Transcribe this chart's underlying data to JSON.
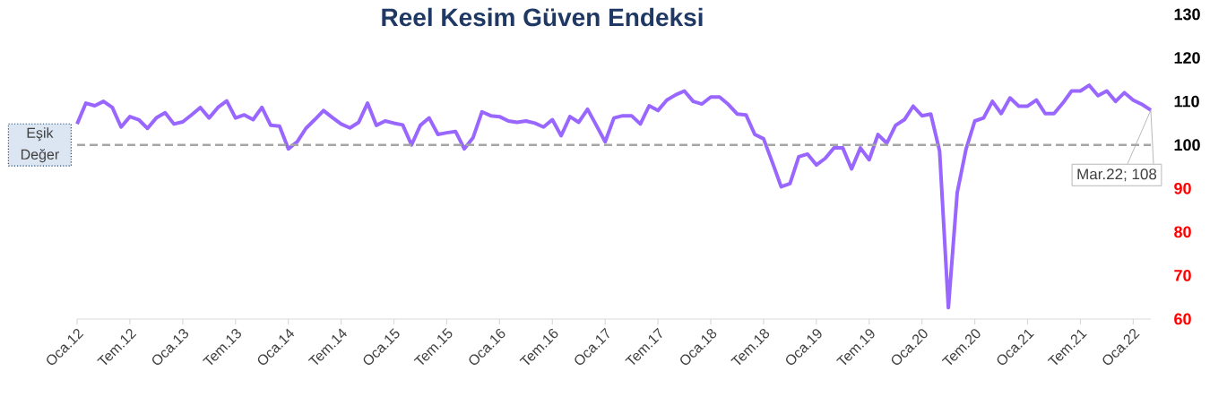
{
  "chart_data": {
    "type": "line",
    "title": "Reel Kesim Güven Endeksi",
    "categories": [
      "Oca.12",
      null,
      null,
      null,
      null,
      null,
      "Tem.12",
      null,
      null,
      null,
      null,
      null,
      "Oca.13",
      null,
      null,
      null,
      null,
      null,
      "Tem.13",
      null,
      null,
      null,
      null,
      null,
      "Oca.14",
      null,
      null,
      null,
      null,
      null,
      "Tem.14",
      null,
      null,
      null,
      null,
      null,
      "Oca.15",
      null,
      null,
      null,
      null,
      null,
      "Tem.15",
      null,
      null,
      null,
      null,
      null,
      "Oca.16",
      null,
      null,
      null,
      null,
      null,
      "Tem.16",
      null,
      null,
      null,
      null,
      null,
      "Oca.17",
      null,
      null,
      null,
      null,
      null,
      "Tem.17",
      null,
      null,
      null,
      null,
      null,
      "Oca.18",
      null,
      null,
      null,
      null,
      null,
      "Tem.18",
      null,
      null,
      null,
      null,
      null,
      "Oca.19",
      null,
      null,
      null,
      null,
      null,
      "Tem.19",
      null,
      null,
      null,
      null,
      null,
      "Oca.20",
      null,
      null,
      null,
      null,
      null,
      "Tem.20",
      null,
      null,
      null,
      null,
      null,
      "Oca.21",
      null,
      null,
      null,
      null,
      null,
      "Tem.21",
      null,
      null,
      null,
      null,
      null,
      "Oca.22",
      null,
      null
    ],
    "series": [
      {
        "color": "#9966ff",
        "values": [
          104.8,
          109.6,
          109.0,
          110.0,
          108.6,
          104.1,
          106.5,
          105.8,
          103.8,
          106.2,
          107.4,
          104.8,
          105.3,
          106.9,
          108.6,
          106.2,
          108.6,
          110.1,
          106.2,
          106.9,
          105.8,
          108.6,
          104.5,
          104.3,
          99.1,
          100.7,
          103.8,
          105.8,
          107.9,
          106.3,
          104.8,
          103.9,
          105.2,
          109.6,
          104.5,
          105.5,
          105.0,
          104.6,
          100.0,
          104.5,
          106.2,
          102.4,
          102.8,
          103.1,
          99.1,
          101.7,
          107.6,
          106.7,
          106.5,
          105.5,
          105.2,
          105.5,
          105.0,
          104.1,
          105.8,
          102.1,
          106.5,
          105.2,
          108.2,
          104.5,
          100.7,
          106.2,
          106.7,
          106.7,
          104.8,
          109.0,
          107.9,
          110.3,
          111.5,
          112.4,
          110.0,
          109.4,
          111.0,
          111.0,
          109.3,
          107.1,
          106.9,
          102.4,
          101.4,
          96.0,
          90.4,
          91.1,
          97.3,
          97.9,
          95.4,
          96.9,
          99.3,
          99.3,
          94.5,
          99.3,
          96.6,
          102.4,
          100.4,
          104.5,
          105.8,
          108.9,
          106.7,
          107.1,
          98.6,
          62.6,
          89.0,
          99.0,
          105.5,
          106.2,
          110.0,
          107.2,
          110.8,
          108.9,
          108.9,
          110.3,
          107.2,
          107.2,
          109.6,
          112.4,
          112.4,
          113.7,
          111.3,
          112.4,
          110.0,
          112.0,
          110.3,
          109.3,
          108.0
        ]
      }
    ],
    "ylim": [
      60,
      130
    ],
    "yticks": [
      60,
      70,
      80,
      90,
      100,
      110,
      120,
      130
    ],
    "ref_lines": [
      {
        "axis": "y",
        "value": 100,
        "label": "Eşik Değer",
        "color": "#a6a6a6",
        "line_style": "dashed"
      }
    ],
    "annotations": [
      "Mar.22; 108"
    ]
  }
}
